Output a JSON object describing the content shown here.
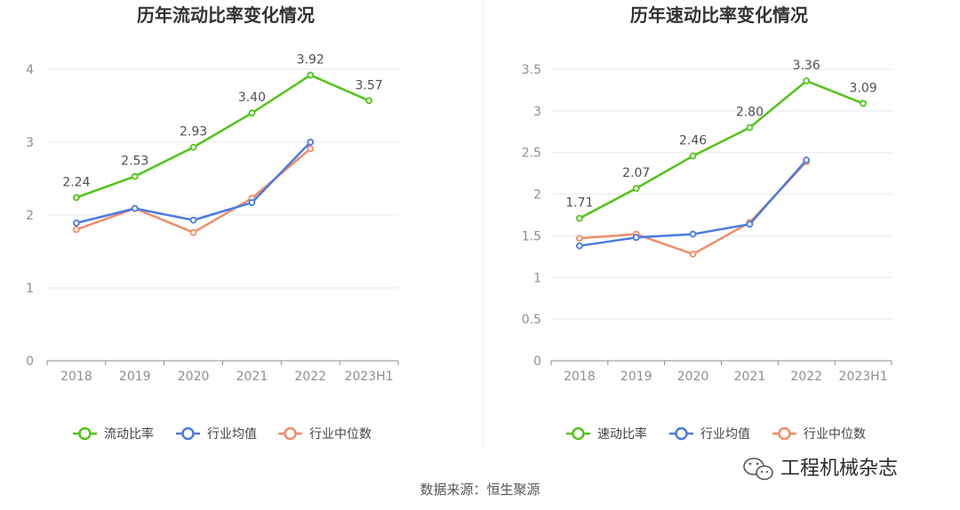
{
  "chart_data": [
    {
      "type": "line",
      "title": "历年流动比率变化情况",
      "categories": [
        "2018",
        "2019",
        "2020",
        "2021",
        "2022",
        "2023H1"
      ],
      "ylim": [
        0,
        4
      ],
      "yticks": [
        "0",
        "1",
        "2",
        "3",
        "4"
      ],
      "grid": true,
      "legend_position": "bottom",
      "series": [
        {
          "name": "流动比率",
          "color": "#52c41a",
          "values": [
            2.24,
            2.53,
            2.93,
            3.4,
            3.92,
            3.57
          ],
          "labels": [
            "2.24",
            "2.53",
            "2.93",
            "3.40",
            "3.92",
            "3.57"
          ]
        },
        {
          "name": "行业均值",
          "color": "#4a7be0",
          "values": [
            1.89,
            2.09,
            1.93,
            2.17,
            3.0,
            null
          ]
        },
        {
          "name": "行业中位数",
          "color": "#f28c6a",
          "values": [
            1.8,
            2.09,
            1.76,
            2.23,
            2.91,
            null
          ]
        }
      ]
    },
    {
      "type": "line",
      "title": "历年速动比率变化情况",
      "categories": [
        "2018",
        "2019",
        "2020",
        "2021",
        "2022",
        "2023H1"
      ],
      "ylim": [
        0,
        3.5
      ],
      "yticks": [
        "0",
        "0.5",
        "1",
        "1.5",
        "2",
        "2.5",
        "3",
        "3.5"
      ],
      "grid": true,
      "legend_position": "bottom",
      "series": [
        {
          "name": "速动比率",
          "color": "#52c41a",
          "values": [
            1.71,
            2.07,
            2.46,
            2.8,
            3.36,
            3.09
          ],
          "labels": [
            "1.71",
            "2.07",
            "2.46",
            "2.80",
            "3.36",
            "3.09"
          ]
        },
        {
          "name": "行业均值",
          "color": "#4a7be0",
          "values": [
            1.38,
            1.48,
            1.52,
            1.64,
            2.41,
            null
          ]
        },
        {
          "name": "行业中位数",
          "color": "#f28c6a",
          "values": [
            1.47,
            1.52,
            1.28,
            1.66,
            2.39,
            null
          ]
        }
      ]
    }
  ],
  "footer": {
    "source": "数据来源：恒生聚源",
    "brand": "工程机械杂志",
    "brand_icon": "wechat-icon"
  }
}
